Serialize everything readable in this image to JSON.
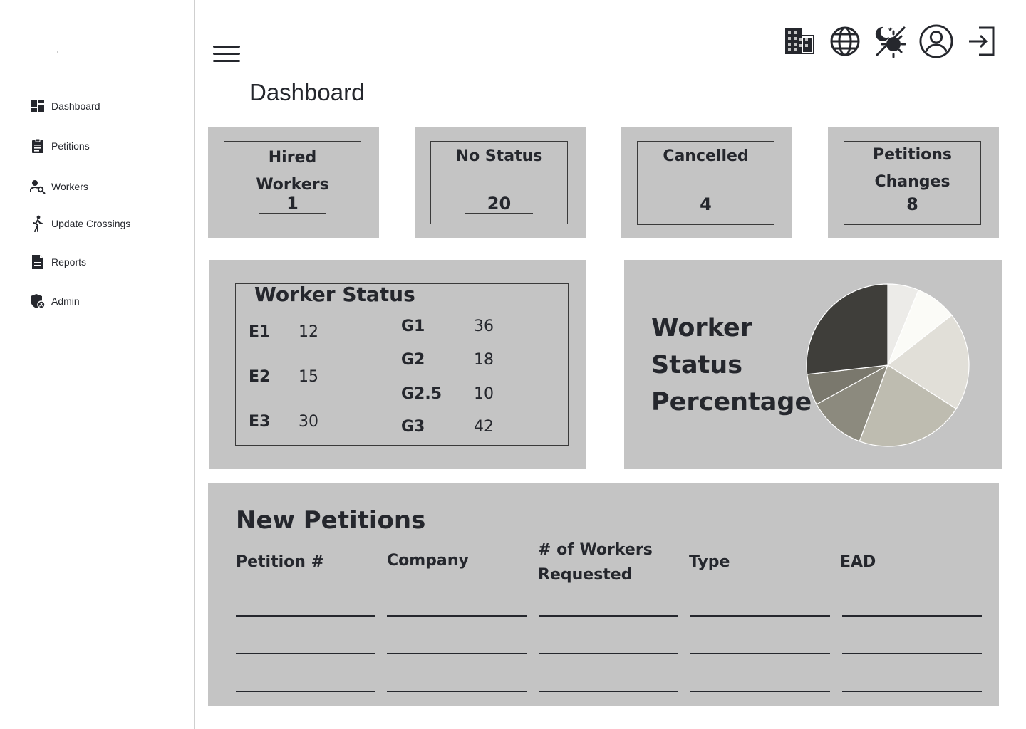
{
  "sidebar": {
    "items": [
      {
        "label": "Dashboard",
        "icon": "dashboard-icon"
      },
      {
        "label": "Petitions",
        "icon": "clipboard-icon"
      },
      {
        "label": "Workers",
        "icon": "person-search-icon"
      },
      {
        "label": "Update Crossings",
        "icon": "walking-icon"
      },
      {
        "label": "Reports",
        "icon": "document-icon"
      },
      {
        "label": "Admin",
        "icon": "shield-icon"
      }
    ]
  },
  "header": {
    "title": "Dashboard",
    "icons": [
      "building-icon",
      "globe-icon",
      "theme-toggle-icon",
      "account-icon",
      "logout-icon"
    ]
  },
  "stats": [
    {
      "label": "Hired Workers",
      "value": "1"
    },
    {
      "label": "No Status",
      "value": "20"
    },
    {
      "label": "Cancelled",
      "value": "4"
    },
    {
      "label": "Petitions Changes",
      "value": "8"
    }
  ],
  "worker_status": {
    "title": "Worker Status",
    "left": [
      {
        "key": "E1",
        "value": "12"
      },
      {
        "key": "E2",
        "value": "15"
      },
      {
        "key": "E3",
        "value": "30"
      }
    ],
    "right": [
      {
        "key": "G1",
        "value": "36"
      },
      {
        "key": "G2",
        "value": "18"
      },
      {
        "key": "G2.5",
        "value": "10"
      },
      {
        "key": "G3",
        "value": "42"
      }
    ]
  },
  "chart_data": {
    "type": "pie",
    "title": "Worker Status Percentage",
    "values": [
      6,
      8,
      19,
      21,
      11,
      6,
      26
    ],
    "colors": [
      "#ecebe8",
      "#fbfbf7",
      "#e1dfd8",
      "#bebcb0",
      "#8c8a7e",
      "#7a786d",
      "#3f3e3a"
    ]
  },
  "new_petitions": {
    "title": "New Petitions",
    "columns": [
      "Petition #",
      "Company",
      "# of Workers Requested",
      "Type",
      "EAD"
    ],
    "rows": [
      [
        "",
        "",
        "",
        "",
        ""
      ],
      [
        "",
        "",
        "",
        "",
        ""
      ],
      [
        "",
        "",
        "",
        "",
        ""
      ]
    ]
  }
}
